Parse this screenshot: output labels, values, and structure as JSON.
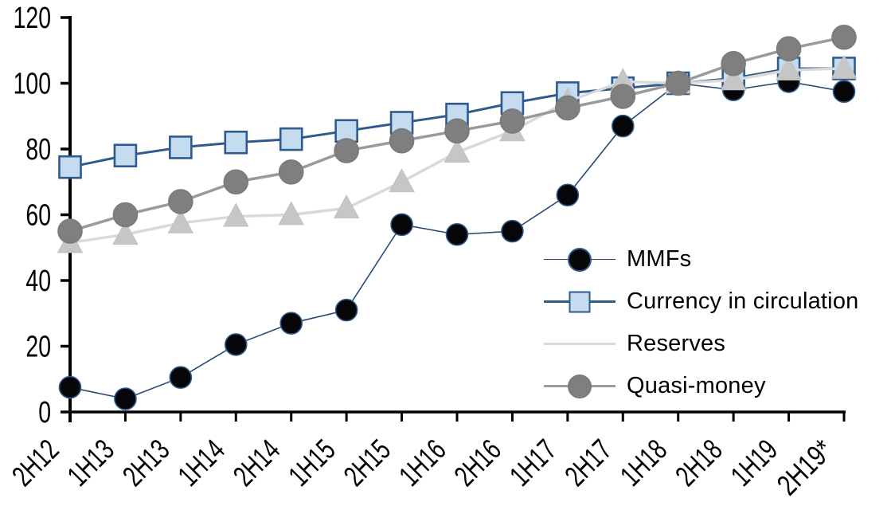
{
  "chart_data": {
    "type": "line",
    "title": "",
    "xlabel": "",
    "ylabel": "",
    "categories": [
      "2H12",
      "1H13",
      "2H13",
      "1H14",
      "2H14",
      "1H15",
      "2H15",
      "1H16",
      "2H16",
      "1H17",
      "2H17",
      "1H18",
      "2H18",
      "1H19",
      "2H19*"
    ],
    "series": [
      {
        "name": "MMFs",
        "marker": "circle",
        "marker_fill": "#060608",
        "marker_border": "#2f5b8c",
        "line_color": "#2a4a75",
        "line_width": 1.6,
        "marker_size": 27,
        "values": [
          7.5,
          4,
          10.5,
          20.5,
          27,
          31,
          57,
          54,
          55,
          66,
          87,
          100,
          98,
          100.5,
          97.5
        ]
      },
      {
        "name": "Currency in circulation",
        "marker": "square",
        "marker_fill": "#c5dcf0",
        "marker_border": "#2f5b8c",
        "line_color": "#2f5b8c",
        "line_width": 3,
        "marker_size": 27,
        "values": [
          74.5,
          78,
          80.5,
          82,
          83,
          85.5,
          88,
          90.5,
          94,
          97,
          98.5,
          100,
          101.5,
          104.5,
          104.5
        ]
      },
      {
        "name": "Reserves",
        "marker": "triangle",
        "marker_fill": "#c6c6c6",
        "marker_border": "#c2c2c2",
        "line_color": "#d9d9d9",
        "line_width": 3.5,
        "marker_size": 31,
        "values": [
          51.5,
          54,
          57.5,
          59.5,
          60,
          62,
          70,
          79,
          85.5,
          94.5,
          100.5,
          100,
          101,
          104,
          104.5
        ]
      },
      {
        "name": "Quasi-money",
        "marker": "circle",
        "marker_fill": "#7f7f7f",
        "marker_border": "#7a7a7a",
        "line_color": "#9a9a9a",
        "line_width": 3.5,
        "marker_size": 30,
        "values": [
          55,
          60,
          64,
          70,
          73,
          79.5,
          82.5,
          85.5,
          88.5,
          92.5,
          96,
          100,
          106,
          110.5,
          114
        ]
      }
    ],
    "ylim": [
      0,
      120
    ],
    "ytick_step": 20,
    "ytick_labels": [
      "0",
      "20",
      "40",
      "60",
      "80",
      "100",
      "120"
    ],
    "grid": false,
    "legend_position": "inside-right",
    "axis_color": "#000000",
    "background_color": "#ffffff"
  }
}
